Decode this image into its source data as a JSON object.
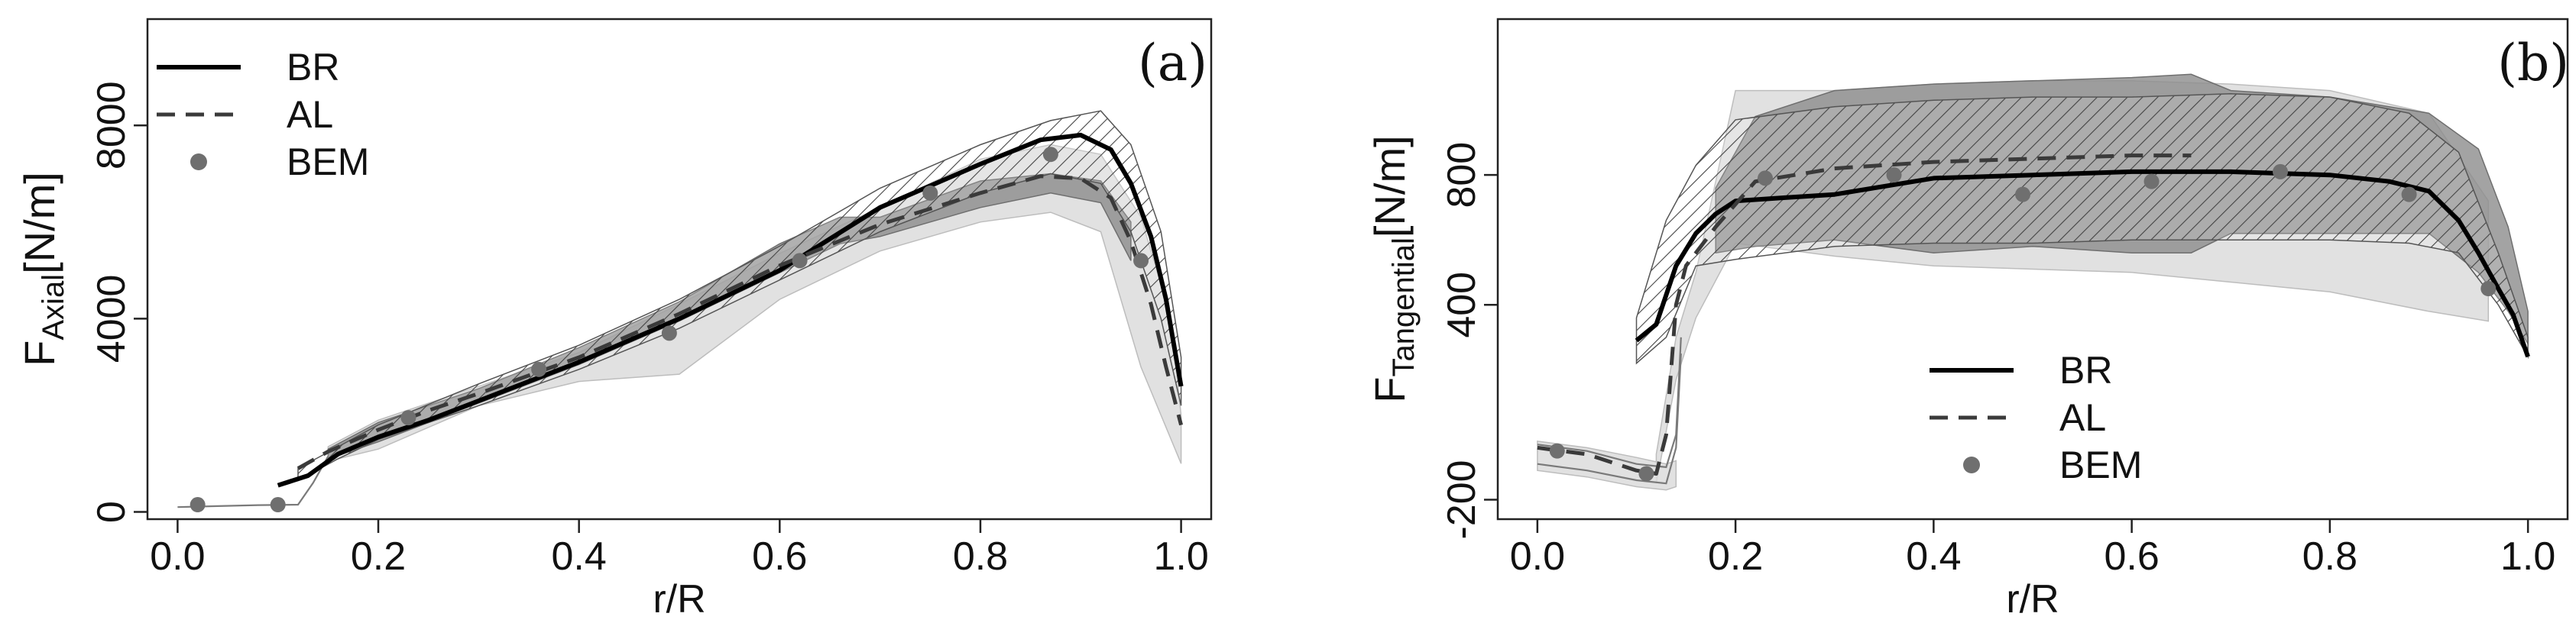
{
  "colors": {
    "axis": "#222222",
    "line": "#000000",
    "bem": "#6f6f6f",
    "band_dark": "#8c8c8c",
    "band_light": "#dcdcdc",
    "hatch": "#444444"
  },
  "chart_data": [
    {
      "type": "line",
      "panel_label": "(a)",
      "title": "",
      "ylabel_main": "F",
      "ylabel_sub": "Axial",
      "ylabel_unit": "[N/m]",
      "xlabel": "r/R",
      "xlim": [
        -0.03,
        1.03
      ],
      "ylim": [
        -150,
        10200
      ],
      "x_ticks": [
        0.0,
        0.2,
        0.4,
        0.6,
        0.8,
        1.0
      ],
      "x_tick_labels": [
        "0.0",
        "0.2",
        "0.4",
        "0.6",
        "0.8",
        "1.0"
      ],
      "y_ticks": [
        0,
        4000,
        8000
      ],
      "y_tick_labels": [
        "0",
        "4000",
        "8000"
      ],
      "legend_position": "top-left",
      "legend": [
        {
          "name": "BR",
          "style": "solid"
        },
        {
          "name": "AL",
          "style": "dashed"
        },
        {
          "name": "BEM",
          "style": "point"
        }
      ],
      "series": [
        {
          "name": "BR",
          "style": "solid",
          "x": [
            0.1,
            0.13,
            0.16,
            0.2,
            0.25,
            0.3,
            0.4,
            0.5,
            0.6,
            0.7,
            0.8,
            0.86,
            0.9,
            0.93,
            0.95,
            0.97,
            0.985,
            1.0
          ],
          "y": [
            550,
            750,
            1200,
            1550,
            1900,
            2300,
            3100,
            4000,
            5000,
            6300,
            7200,
            7700,
            7800,
            7500,
            6800,
            5700,
            4400,
            2600
          ]
        },
        {
          "name": "AL",
          "style": "dashed",
          "x": [
            0.12,
            0.15,
            0.2,
            0.25,
            0.3,
            0.4,
            0.5,
            0.6,
            0.7,
            0.8,
            0.86,
            0.9,
            0.93,
            0.95,
            0.97,
            0.985,
            1.0
          ],
          "y": [
            900,
            1250,
            1700,
            2100,
            2450,
            3200,
            4100,
            5100,
            5950,
            6600,
            6950,
            6900,
            6500,
            5600,
            4300,
            3000,
            1800
          ]
        },
        {
          "name": "BEM",
          "style": "point",
          "x": [
            0.02,
            0.1,
            0.23,
            0.36,
            0.49,
            0.62,
            0.75,
            0.87,
            0.96
          ],
          "y": [
            150,
            150,
            1950,
            2950,
            3700,
            5200,
            6600,
            7400,
            5200
          ]
        }
      ],
      "bands": [
        {
          "kind": "light",
          "x": [
            0.15,
            0.2,
            0.3,
            0.4,
            0.5,
            0.6,
            0.7,
            0.8,
            0.87,
            0.92,
            0.96,
            0.99,
            1.0
          ],
          "lower": [
            1050,
            1300,
            2200,
            2700,
            2850,
            4400,
            5400,
            6000,
            6200,
            5800,
            3000,
            1500,
            1000
          ],
          "upper": [
            1350,
            1900,
            2600,
            3300,
            4300,
            5350,
            6300,
            7300,
            7600,
            7400,
            6100,
            4000,
            2000
          ]
        },
        {
          "kind": "dark",
          "x": [
            0.15,
            0.2,
            0.3,
            0.4,
            0.5,
            0.6,
            0.66,
            0.7,
            0.8,
            0.87,
            0.92,
            0.95
          ],
          "lower": [
            1100,
            1450,
            2250,
            3050,
            3950,
            4950,
            5550,
            5700,
            6300,
            6600,
            6400,
            5200
          ],
          "upper": [
            1300,
            1850,
            2550,
            3400,
            4350,
            5550,
            6100,
            6100,
            6850,
            7000,
            6850,
            6000
          ]
        },
        {
          "kind": "hatch",
          "x": [
            0.12,
            0.16,
            0.2,
            0.3,
            0.4,
            0.5,
            0.6,
            0.7,
            0.8,
            0.87,
            0.92,
            0.95,
            0.98,
            1.0
          ],
          "lower": [
            650,
            1100,
            1500,
            2200,
            2950,
            3800,
            4800,
            5800,
            6600,
            7000,
            6800,
            5800,
            4000,
            2200
          ],
          "upper": [
            900,
            1350,
            1800,
            2650,
            3450,
            4400,
            5500,
            6700,
            7600,
            8100,
            8300,
            7600,
            5800,
            3200
          ]
        }
      ],
      "lines": [
        {
          "x": [
            0.0,
            0.04,
            0.08,
            0.12,
            0.135,
            0.15
          ],
          "y": [
            100,
            120,
            140,
            150,
            600,
            1150
          ]
        }
      ]
    },
    {
      "type": "line",
      "panel_label": "(b)",
      "title": "",
      "ylabel_main": "F",
      "ylabel_sub": "Tangential",
      "ylabel_unit": "[N/m]",
      "xlabel": "r/R",
      "xlim": [
        -0.04,
        1.04
      ],
      "ylim": [
        -260,
        1280
      ],
      "x_ticks": [
        0.0,
        0.2,
        0.4,
        0.6,
        0.8,
        1.0
      ],
      "x_tick_labels": [
        "0.0",
        "0.2",
        "0.4",
        "0.6",
        "0.8",
        "1.0"
      ],
      "y_ticks": [
        -200,
        400,
        800
      ],
      "y_tick_labels": [
        "-200",
        "400",
        "800"
      ],
      "legend_position": "bottom-center",
      "legend": [
        {
          "name": "BR",
          "style": "solid"
        },
        {
          "name": "AL",
          "style": "dashed"
        },
        {
          "name": "BEM",
          "style": "point"
        }
      ],
      "series": [
        {
          "name": "BR",
          "style": "solid",
          "x": [
            0.1,
            0.12,
            0.14,
            0.16,
            0.18,
            0.2,
            0.25,
            0.3,
            0.4,
            0.5,
            0.6,
            0.7,
            0.8,
            0.86,
            0.9,
            0.93,
            0.95,
            0.97,
            0.985,
            1.0
          ],
          "y": [
            290,
            340,
            520,
            620,
            680,
            720,
            730,
            740,
            790,
            800,
            810,
            810,
            800,
            780,
            750,
            660,
            560,
            450,
            370,
            240
          ]
        },
        {
          "name": "AL",
          "style": "dashed",
          "x": [
            0.0,
            0.05,
            0.1,
            0.12,
            0.13,
            0.14,
            0.15,
            0.18,
            0.22,
            0.3,
            0.4,
            0.5,
            0.6,
            0.66
          ],
          "y": [
            -40,
            -60,
            -110,
            -120,
            0,
            400,
            520,
            640,
            780,
            820,
            840,
            850,
            860,
            860
          ]
        },
        {
          "name": "BEM",
          "style": "point",
          "x": [
            0.02,
            0.11,
            0.23,
            0.36,
            0.49,
            0.62,
            0.75,
            0.88,
            0.96
          ],
          "y": [
            -50,
            -120,
            790,
            800,
            740,
            780,
            810,
            740,
            450
          ]
        }
      ],
      "bands": [
        {
          "kind": "light",
          "x": [
            0.12,
            0.14,
            0.16,
            0.2,
            0.3,
            0.4,
            0.5,
            0.6,
            0.7,
            0.8,
            0.9,
            0.96
          ],
          "lower": [
            -150,
            170,
            360,
            590,
            550,
            520,
            510,
            500,
            470,
            440,
            380,
            350
          ],
          "upper": [
            -60,
            300,
            500,
            1060,
            1060,
            1080,
            1090,
            1090,
            1080,
            1060,
            990,
            720
          ]
        },
        {
          "kind": "dark",
          "x": [
            0.18,
            0.22,
            0.3,
            0.4,
            0.5,
            0.6,
            0.66,
            0.7,
            0.8,
            0.9,
            0.95,
            0.98,
            1.0
          ],
          "lower": [
            560,
            580,
            600,
            560,
            580,
            560,
            560,
            620,
            620,
            620,
            500,
            380,
            280
          ],
          "upper": [
            760,
            980,
            1060,
            1080,
            1090,
            1100,
            1110,
            1060,
            1040,
            990,
            880,
            640,
            380
          ]
        },
        {
          "kind": "hatch",
          "x": [
            0.1,
            0.13,
            0.16,
            0.2,
            0.3,
            0.4,
            0.5,
            0.6,
            0.7,
            0.8,
            0.88,
            0.93,
            0.97,
            1.0
          ],
          "lower": [
            220,
            300,
            520,
            540,
            580,
            590,
            590,
            600,
            600,
            600,
            590,
            560,
            400,
            240
          ],
          "upper": [
            360,
            660,
            830,
            970,
            1010,
            1030,
            1040,
            1040,
            1050,
            1040,
            990,
            870,
            560,
            300
          ]
        },
        {
          "kind": "light",
          "x": [
            0.0,
            0.05,
            0.1,
            0.13,
            0.14
          ],
          "lower": [
            -110,
            -130,
            -160,
            -170,
            -160
          ],
          "upper": [
            -20,
            -40,
            -70,
            -90,
            -80
          ]
        }
      ],
      "lines": [
        {
          "x": [
            0.0,
            0.05,
            0.1,
            0.13,
            0.14,
            0.145
          ],
          "y": [
            -30,
            -50,
            -90,
            -100,
            0,
            300
          ]
        },
        {
          "x": [
            0.0,
            0.05,
            0.1,
            0.13,
            0.14,
            0.145
          ],
          "y": [
            -90,
            -110,
            -140,
            -150,
            -40,
            250
          ]
        }
      ]
    }
  ]
}
